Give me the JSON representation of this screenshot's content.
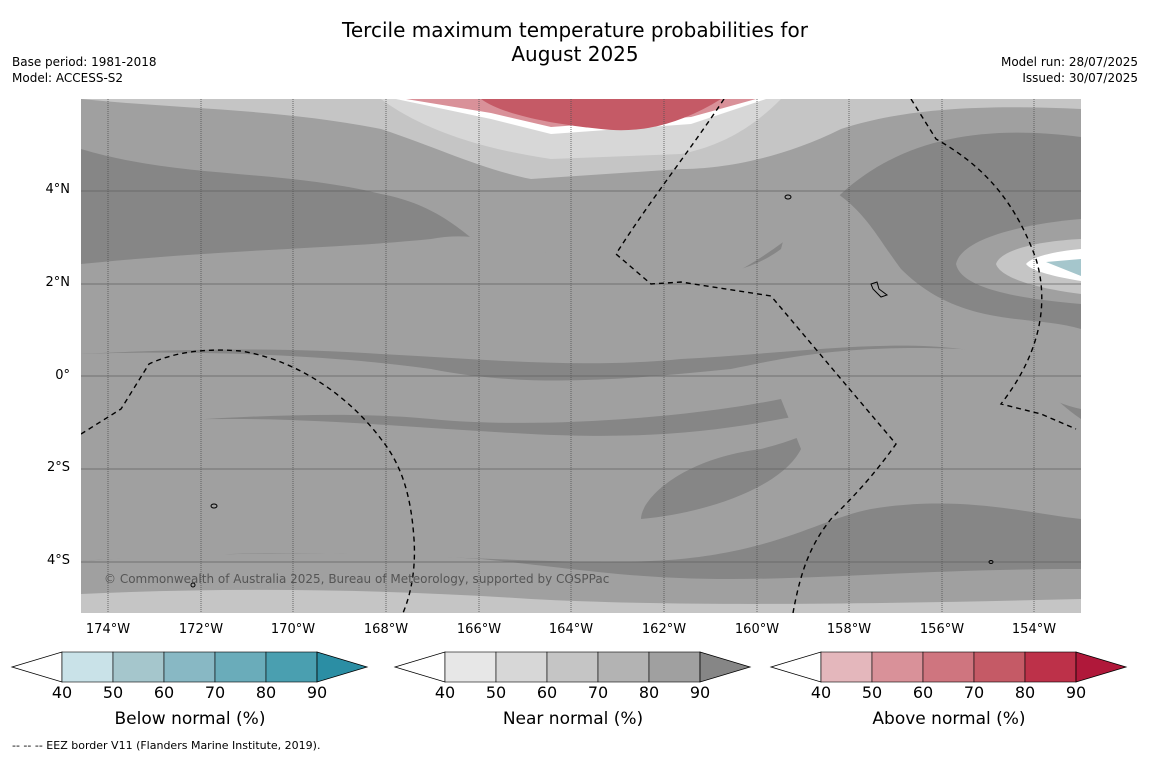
{
  "title_line1": "Tercile maximum temperature probabilities for",
  "title_line2": "August 2025",
  "meta_left": {
    "base_period": "Base period: 1981-2018",
    "model": "Model: ACCESS-S2"
  },
  "meta_right": {
    "model_run": "Model run: 28/07/2025",
    "issued": "Issued: 30/07/2025"
  },
  "copyright": "© Commonwealth of Australia 2025, Bureau of Meteorology, supported by COSPPac",
  "lat_labels": [
    "4°N",
    "2°N",
    "0°",
    "2°S",
    "4°S"
  ],
  "lon_labels": [
    "174°W",
    "172°W",
    "170°W",
    "168°W",
    "166°W",
    "164°W",
    "162°W",
    "160°W",
    "158°W",
    "156°W",
    "154°W"
  ],
  "colorbars": [
    {
      "title": "Below normal (%)",
      "ticks": [
        "40",
        "50",
        "60",
        "70",
        "80",
        "90"
      ],
      "colors": [
        "#c9e2e8",
        "#a5c6cc",
        "#88b8c4",
        "#6aacba",
        "#4a9fb0",
        "#2b8ea4"
      ]
    },
    {
      "title": "Near normal (%)",
      "ticks": [
        "40",
        "50",
        "60",
        "70",
        "80",
        "90"
      ],
      "colors": [
        "#e7e7e7",
        "#d7d7d7",
        "#c5c5c5",
        "#b3b3b3",
        "#a0a0a0",
        "#868686"
      ]
    },
    {
      "title": "Above normal (%)",
      "ticks": [
        "40",
        "50",
        "60",
        "70",
        "80",
        "90"
      ],
      "colors": [
        "#e4b7bc",
        "#d99199",
        "#cf757f",
        "#c55a66",
        "#bd3149",
        "#b0183a"
      ]
    }
  ],
  "footnote": "-- -- -- EEZ border V11 (Flanders Marine Institute, 2019)."
}
